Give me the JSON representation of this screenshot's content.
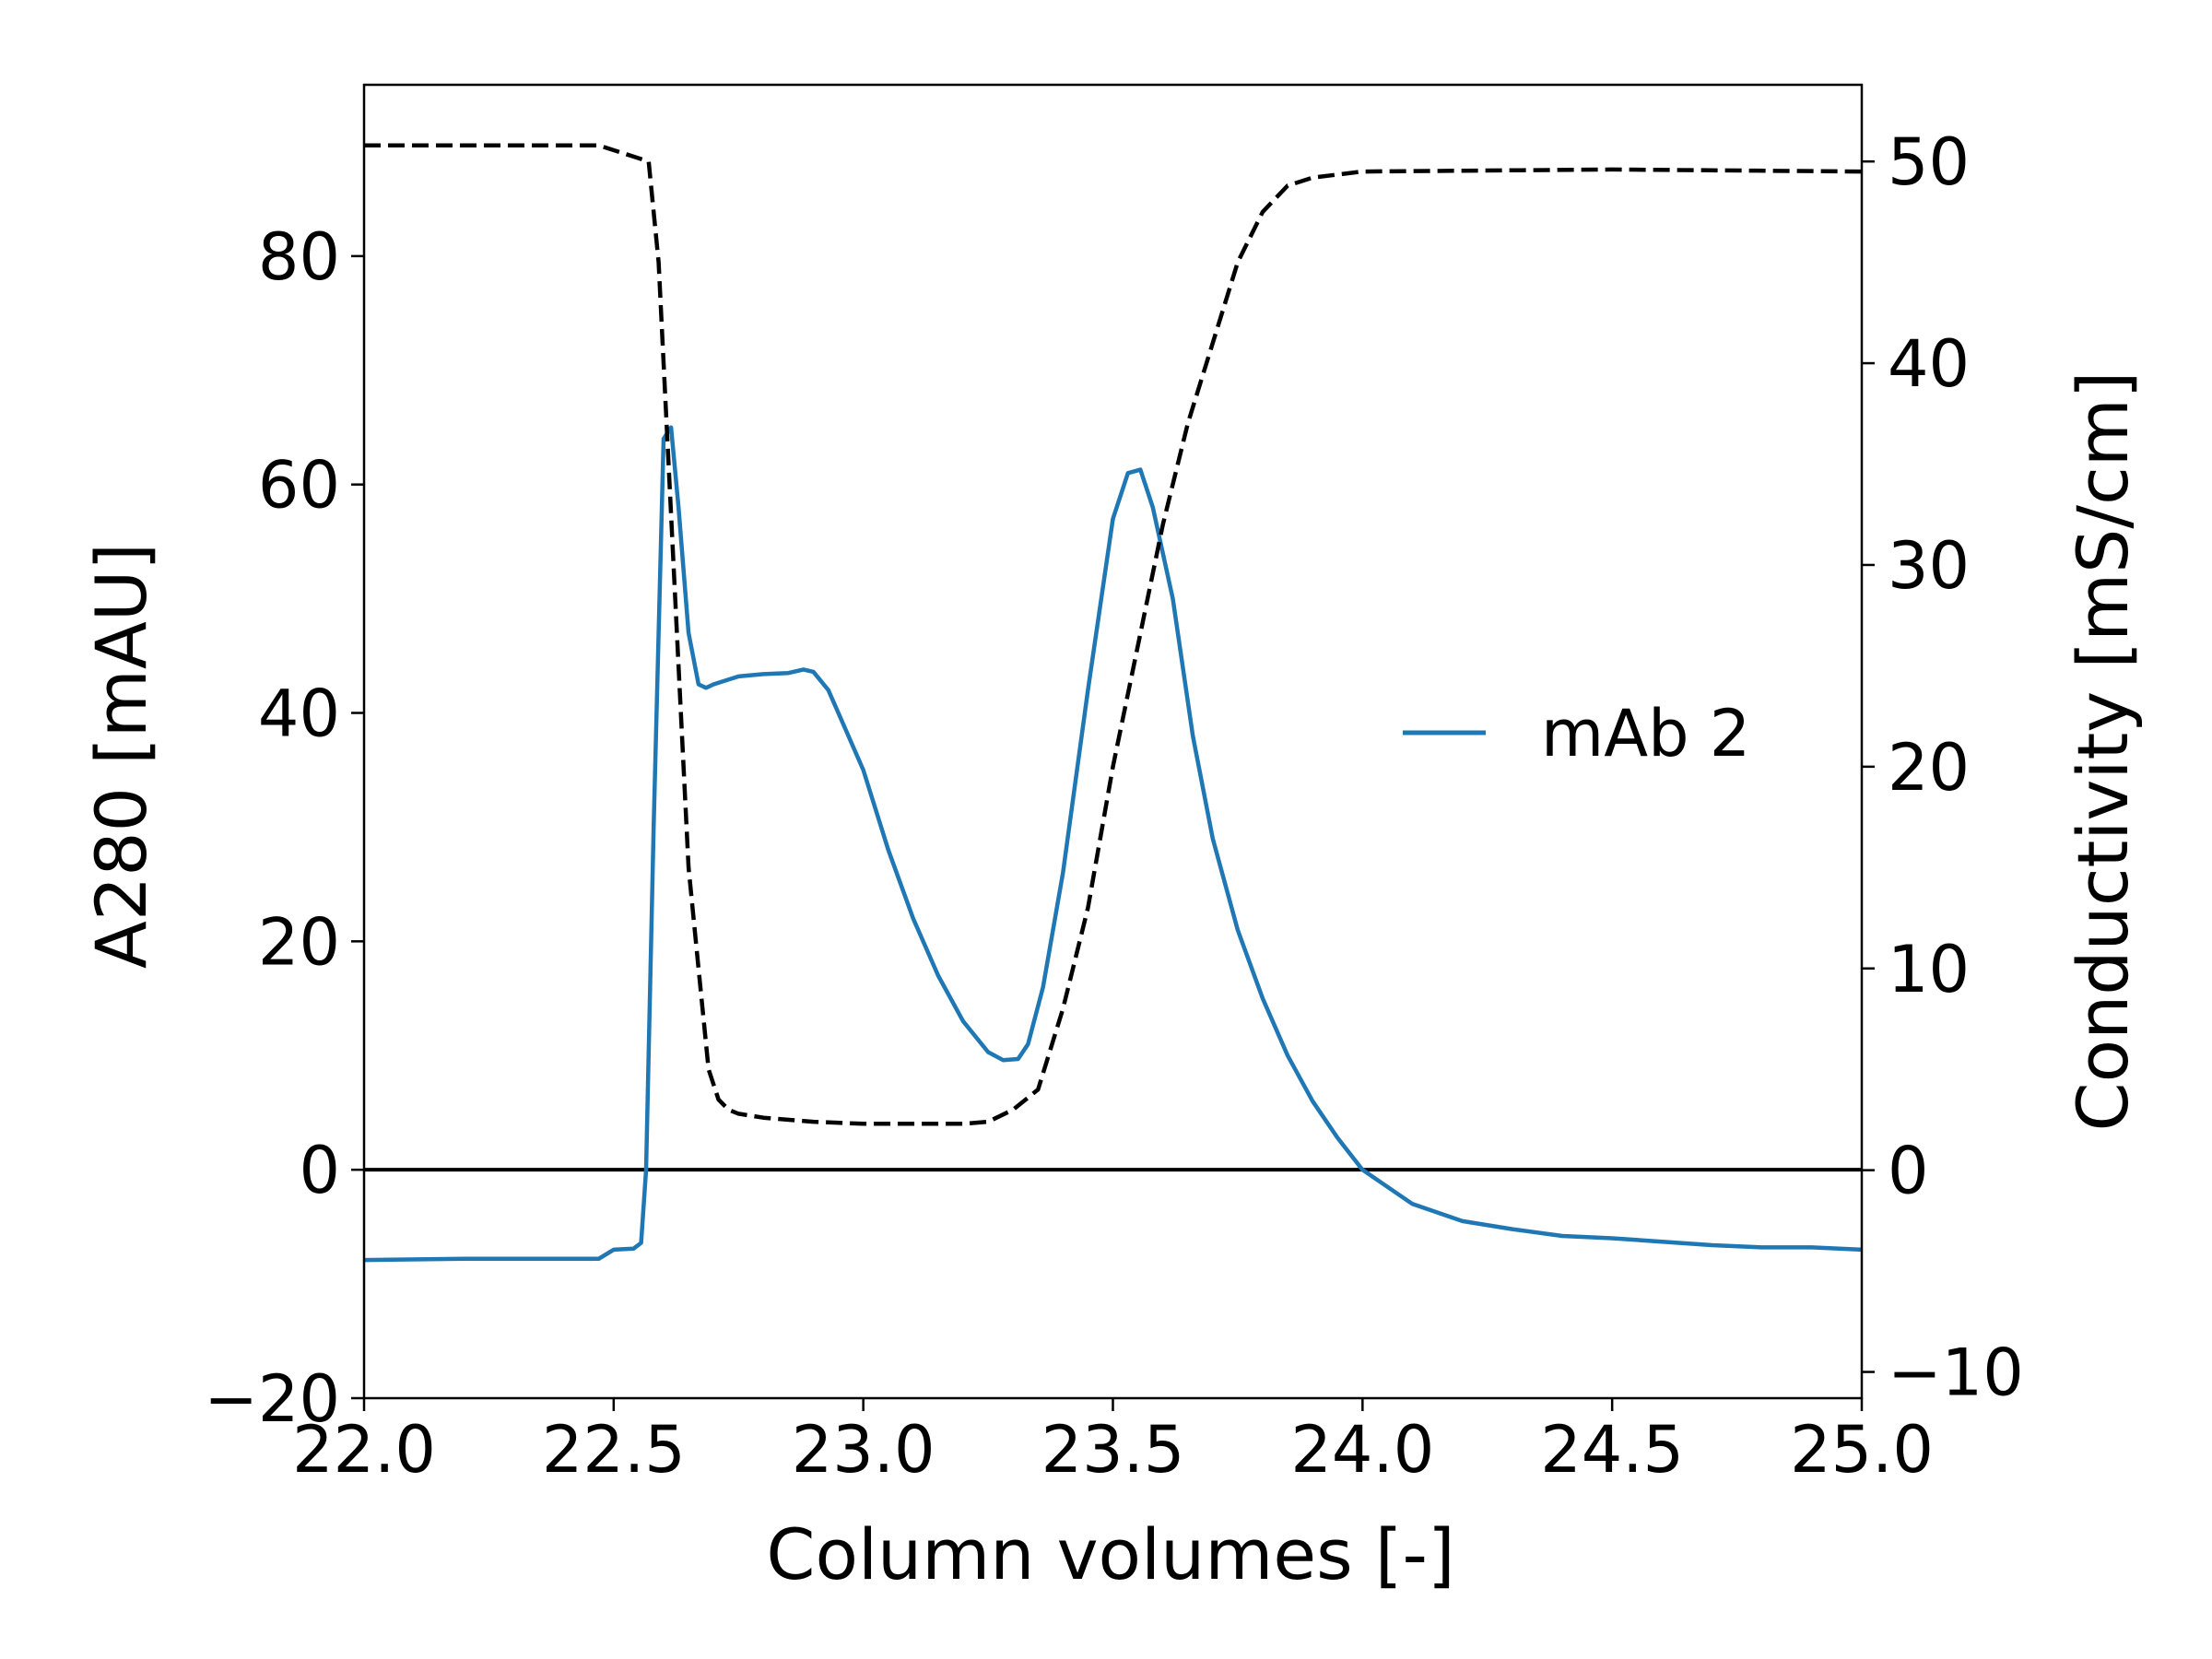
{
  "chart_data": {
    "type": "line",
    "title": "",
    "xlabel": "Column volumes [-]",
    "ylabel": "A280 [mAU]",
    "y2label": "Conductivity [mS/cm]",
    "xlim": [
      22.0,
      25.0
    ],
    "ylim": [
      -20,
      95
    ],
    "y2lim": [
      -11.3,
      53.8
    ],
    "xticks": [
      22.0,
      22.5,
      23.0,
      23.5,
      24.0,
      24.5,
      25.0
    ],
    "xtick_labels": [
      "22.0",
      "22.5",
      "23.0",
      "23.5",
      "24.0",
      "24.5",
      "25.0"
    ],
    "yticks": [
      -20,
      0,
      20,
      40,
      60,
      80
    ],
    "ytick_labels": [
      "−20",
      "0",
      "20",
      "40",
      "60",
      "80"
    ],
    "y2ticks": [
      -10,
      0,
      10,
      20,
      30,
      40,
      50
    ],
    "y2tick_labels": [
      "−10",
      "0",
      "10",
      "20",
      "30",
      "40",
      "50"
    ],
    "grid": false,
    "legend_position": "center-right",
    "zero_line": 0,
    "series": [
      {
        "name": "mAb 2",
        "axis": "left",
        "style": "solid",
        "color": "#1f77b4",
        "x": [
          22.0,
          22.2,
          22.47,
          22.5,
          22.54,
          22.555,
          22.565,
          22.58,
          22.6,
          22.615,
          22.63,
          22.65,
          22.67,
          22.685,
          22.7,
          22.75,
          22.8,
          22.85,
          22.88,
          22.9,
          22.93,
          22.95,
          23.0,
          23.05,
          23.1,
          23.15,
          23.2,
          23.25,
          23.28,
          23.31,
          23.33,
          23.36,
          23.4,
          23.45,
          23.5,
          23.53,
          23.555,
          23.58,
          23.62,
          23.66,
          23.7,
          23.75,
          23.8,
          23.85,
          23.9,
          23.95,
          24.0,
          24.1,
          24.2,
          24.3,
          24.4,
          24.5,
          24.6,
          24.7,
          24.8,
          24.9,
          25.0
        ],
        "y": [
          -7.9,
          -7.8,
          -7.8,
          -7.0,
          -6.9,
          -6.4,
          0,
          30,
          64,
          65,
          58,
          47,
          42.5,
          42.2,
          42.5,
          43.2,
          43.4,
          43.5,
          43.8,
          43.6,
          42.0,
          40.0,
          35.0,
          28.0,
          22.0,
          17.0,
          13.0,
          10.3,
          9.6,
          9.7,
          11.0,
          16.0,
          26.0,
          42.0,
          57.0,
          61.0,
          61.3,
          58.0,
          50.0,
          38.0,
          29.0,
          21.0,
          15.0,
          10.0,
          6.0,
          2.8,
          0.0,
          -3.0,
          -4.5,
          -5.2,
          -5.8,
          -6.0,
          -6.3,
          -6.6,
          -6.8,
          -6.8,
          -7.0
        ]
      },
      {
        "name": "",
        "axis": "right",
        "style": "dashed",
        "color": "#000000",
        "x": [
          22.0,
          22.2,
          22.47,
          22.52,
          22.57,
          22.59,
          22.61,
          22.63,
          22.65,
          22.67,
          22.69,
          22.71,
          22.73,
          22.75,
          22.8,
          22.9,
          23.0,
          23.1,
          23.2,
          23.25,
          23.3,
          23.35,
          23.4,
          23.45,
          23.5,
          23.55,
          23.6,
          23.65,
          23.7,
          23.75,
          23.8,
          23.85,
          23.9,
          24.0,
          24.5,
          25.0
        ],
        "y": [
          50.8,
          50.8,
          50.8,
          50.4,
          50.0,
          45.0,
          35.0,
          25.0,
          15.0,
          10.0,
          5.0,
          3.5,
          3.0,
          2.8,
          2.6,
          2.4,
          2.3,
          2.3,
          2.3,
          2.4,
          3.0,
          4.0,
          8.0,
          13.0,
          20.0,
          26.0,
          32.0,
          37.0,
          41.0,
          45.0,
          47.5,
          48.8,
          49.2,
          49.5,
          49.6,
          49.5
        ]
      }
    ]
  }
}
